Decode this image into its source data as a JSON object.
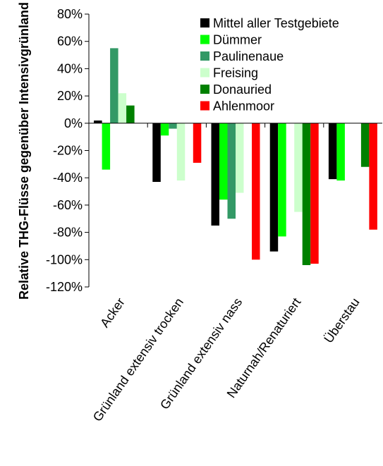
{
  "chart_data": {
    "type": "bar",
    "title": "",
    "xlabel": "",
    "ylabel": "Relative THG-Flüsse gegenüber Intensivgrünland",
    "categories": [
      "Acker",
      "Grünland extensiv trocken",
      "Grünland extensiv nass",
      "Naturnah/Renaturiert",
      "Überstau"
    ],
    "ylim": [
      -120,
      80
    ],
    "yticks": [
      80,
      60,
      40,
      20,
      0,
      -20,
      -40,
      -60,
      -80,
      -100,
      -120
    ],
    "ytick_labels": [
      "80%",
      "60%",
      "40%",
      "20%",
      "0%",
      "-20%",
      "-40%",
      "-60%",
      "-80%",
      "-100%",
      "-120%"
    ],
    "grid": false,
    "legend_position": "top-right",
    "series": [
      {
        "name": "Mittel aller Testgebiete",
        "color": "#000000",
        "values": [
          2,
          -43,
          -75,
          -94,
          -41
        ]
      },
      {
        "name": "Dümmer",
        "color": "#00ff00",
        "values": [
          -34,
          -9,
          -56,
          -83,
          -42
        ]
      },
      {
        "name": "Paulinenaue",
        "color": "#339966",
        "values": [
          55,
          -4,
          -70,
          null,
          null
        ]
      },
      {
        "name": "Freising",
        "color": "#ccffcc",
        "values": [
          22,
          -42,
          -51,
          -65,
          null
        ]
      },
      {
        "name": "Donauried",
        "color": "#008000",
        "values": [
          13,
          null,
          null,
          -104,
          -32
        ]
      },
      {
        "name": "Ahlenmoor",
        "color": "#ff0000",
        "values": [
          null,
          -29,
          -100,
          -103,
          -78
        ]
      }
    ]
  }
}
